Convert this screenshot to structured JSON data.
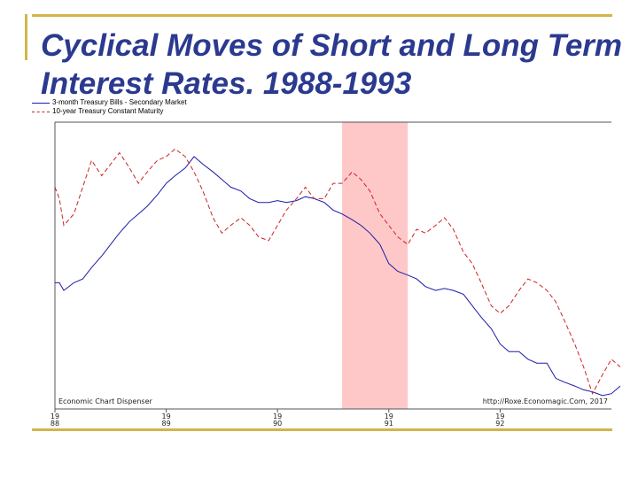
{
  "slide": {
    "title": "Cyclical Moves of  Short and Long Term Interest Rates. 1988-1993",
    "accent_color": "#d4b44a",
    "title_color": "#2b3a8f"
  },
  "chart_data": {
    "type": "line",
    "title": "",
    "xlabel": "",
    "ylabel": "",
    "grid": false,
    "legend_position": "top-left",
    "xlim": [
      1988,
      1993
    ],
    "ylim": [
      2.5,
      10.0
    ],
    "x_ticks": [
      {
        "value": 1988,
        "line1": "19",
        "line2": "88"
      },
      {
        "value": 1989,
        "line1": "19",
        "line2": "89"
      },
      {
        "value": 1990,
        "line1": "19",
        "line2": "90"
      },
      {
        "value": 1991,
        "line1": "19",
        "line2": "91"
      },
      {
        "value": 1992,
        "line1": "19",
        "line2": "92"
      }
    ],
    "recession": {
      "start": 1990.58,
      "end": 1991.17,
      "color": "#ffc8c8"
    },
    "series": [
      {
        "name": "3-month Treasury Bills - Secondary Market",
        "color": "#1a1aaa",
        "dash": "solid",
        "points": [
          [
            1988.0,
            5.8
          ],
          [
            1988.04,
            5.8
          ],
          [
            1988.08,
            5.6
          ],
          [
            1988.17,
            5.8
          ],
          [
            1988.25,
            5.9
          ],
          [
            1988.33,
            6.2
          ],
          [
            1988.42,
            6.5
          ],
          [
            1988.5,
            6.8
          ],
          [
            1988.58,
            7.1
          ],
          [
            1988.67,
            7.4
          ],
          [
            1988.75,
            7.6
          ],
          [
            1988.83,
            7.8
          ],
          [
            1988.92,
            8.1
          ],
          [
            1989.0,
            8.4
          ],
          [
            1989.08,
            8.6
          ],
          [
            1989.17,
            8.8
          ],
          [
            1989.25,
            9.1
          ],
          [
            1989.33,
            8.9
          ],
          [
            1989.42,
            8.7
          ],
          [
            1989.5,
            8.5
          ],
          [
            1989.58,
            8.3
          ],
          [
            1989.67,
            8.2
          ],
          [
            1989.75,
            8.0
          ],
          [
            1989.83,
            7.9
          ],
          [
            1989.92,
            7.9
          ],
          [
            1990.0,
            7.95
          ],
          [
            1990.08,
            7.9
          ],
          [
            1990.17,
            7.95
          ],
          [
            1990.25,
            8.05
          ],
          [
            1990.33,
            8.0
          ],
          [
            1990.42,
            7.9
          ],
          [
            1990.5,
            7.7
          ],
          [
            1990.58,
            7.6
          ],
          [
            1990.67,
            7.45
          ],
          [
            1990.75,
            7.3
          ],
          [
            1990.83,
            7.1
          ],
          [
            1990.92,
            6.8
          ],
          [
            1991.0,
            6.3
          ],
          [
            1991.08,
            6.1
          ],
          [
            1991.17,
            6.0
          ],
          [
            1991.25,
            5.9
          ],
          [
            1991.33,
            5.7
          ],
          [
            1991.42,
            5.6
          ],
          [
            1991.5,
            5.65
          ],
          [
            1991.58,
            5.6
          ],
          [
            1991.67,
            5.5
          ],
          [
            1991.75,
            5.2
          ],
          [
            1991.83,
            4.9
          ],
          [
            1991.92,
            4.6
          ],
          [
            1992.0,
            4.2
          ],
          [
            1992.08,
            4.0
          ],
          [
            1992.17,
            4.0
          ],
          [
            1992.25,
            3.8
          ],
          [
            1992.33,
            3.7
          ],
          [
            1992.42,
            3.7
          ],
          [
            1992.5,
            3.3
          ],
          [
            1992.58,
            3.2
          ],
          [
            1992.67,
            3.1
          ],
          [
            1992.75,
            3.0
          ],
          [
            1992.83,
            2.95
          ],
          [
            1992.92,
            2.85
          ],
          [
            1993.0,
            2.9
          ],
          [
            1993.08,
            3.1
          ]
        ]
      },
      {
        "name": "10-year Treasury Constant Maturity",
        "color": "#cc2222",
        "dash": "dashed",
        "points": [
          [
            1988.0,
            8.3
          ],
          [
            1988.04,
            8.0
          ],
          [
            1988.08,
            7.3
          ],
          [
            1988.17,
            7.6
          ],
          [
            1988.25,
            8.3
          ],
          [
            1988.33,
            9.0
          ],
          [
            1988.42,
            8.6
          ],
          [
            1988.5,
            8.9
          ],
          [
            1988.58,
            9.2
          ],
          [
            1988.67,
            8.8
          ],
          [
            1988.75,
            8.4
          ],
          [
            1988.83,
            8.7
          ],
          [
            1988.92,
            9.0
          ],
          [
            1989.0,
            9.1
          ],
          [
            1989.08,
            9.3
          ],
          [
            1989.17,
            9.1
          ],
          [
            1989.25,
            8.7
          ],
          [
            1989.33,
            8.2
          ],
          [
            1989.42,
            7.5
          ],
          [
            1989.5,
            7.1
          ],
          [
            1989.58,
            7.3
          ],
          [
            1989.67,
            7.5
          ],
          [
            1989.75,
            7.3
          ],
          [
            1989.83,
            7.0
          ],
          [
            1989.92,
            6.9
          ],
          [
            1990.0,
            7.3
          ],
          [
            1990.08,
            7.7
          ],
          [
            1990.17,
            8.0
          ],
          [
            1990.25,
            8.3
          ],
          [
            1990.33,
            8.0
          ],
          [
            1990.42,
            8.0
          ],
          [
            1990.5,
            8.4
          ],
          [
            1990.58,
            8.4
          ],
          [
            1990.67,
            8.7
          ],
          [
            1990.75,
            8.5
          ],
          [
            1990.83,
            8.2
          ],
          [
            1990.92,
            7.6
          ],
          [
            1991.0,
            7.3
          ],
          [
            1991.08,
            7.0
          ],
          [
            1991.17,
            6.8
          ],
          [
            1991.25,
            7.2
          ],
          [
            1991.33,
            7.1
          ],
          [
            1991.42,
            7.3
          ],
          [
            1991.5,
            7.5
          ],
          [
            1991.58,
            7.2
          ],
          [
            1991.67,
            6.6
          ],
          [
            1991.75,
            6.3
          ],
          [
            1991.83,
            5.8
          ],
          [
            1991.92,
            5.2
          ],
          [
            1992.0,
            5.0
          ],
          [
            1992.08,
            5.2
          ],
          [
            1992.17,
            5.6
          ],
          [
            1992.25,
            5.9
          ],
          [
            1992.33,
            5.8
          ],
          [
            1992.42,
            5.6
          ],
          [
            1992.5,
            5.3
          ],
          [
            1992.58,
            4.8
          ],
          [
            1992.67,
            4.2
          ],
          [
            1992.75,
            3.6
          ],
          [
            1992.83,
            2.9
          ],
          [
            1992.92,
            3.4
          ],
          [
            1993.0,
            3.8
          ],
          [
            1993.08,
            3.6
          ]
        ]
      }
    ],
    "annotations": {
      "source_left": "Economic Chart Dispenser",
      "source_right": "http://Roxe.Economagic.Com, 2017"
    }
  }
}
